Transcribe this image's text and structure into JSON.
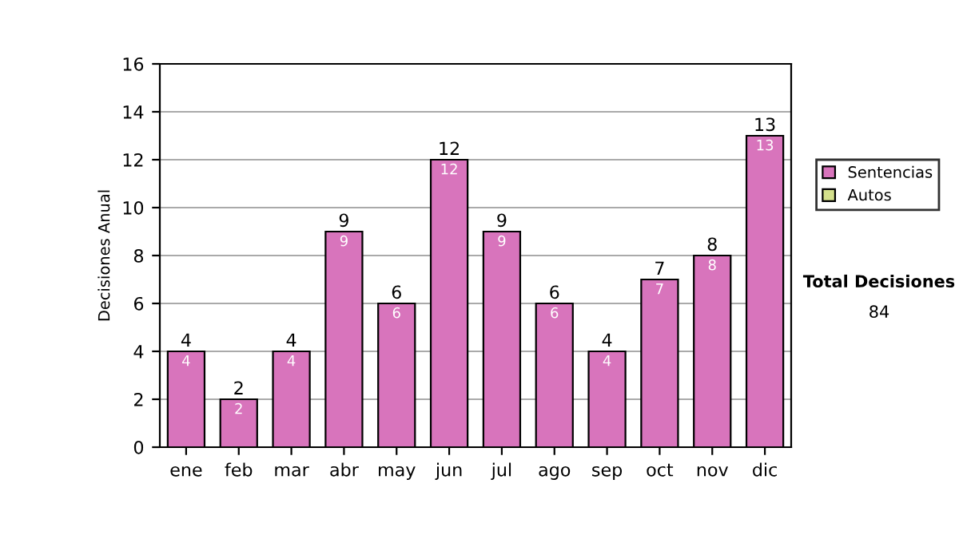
{
  "chart_data": {
    "type": "bar",
    "stacked": true,
    "categories": [
      "ene",
      "feb",
      "mar",
      "abr",
      "may",
      "jun",
      "jul",
      "ago",
      "sep",
      "oct",
      "nov",
      "dic"
    ],
    "series": [
      {
        "name": "Sentencias",
        "color": "#d874bc",
        "values": [
          4,
          2,
          4,
          9,
          6,
          12,
          9,
          6,
          4,
          7,
          8,
          13
        ]
      },
      {
        "name": "Autos",
        "color": "#d4e08c",
        "values": [
          null,
          null,
          null,
          null,
          null,
          null,
          null,
          null,
          null,
          null,
          null,
          null
        ]
      }
    ],
    "data_labels": true,
    "totals": [
      "4",
      "2",
      "4",
      "9",
      "6",
      "12",
      "9",
      "6",
      "4",
      "7",
      "8",
      "13"
    ],
    "ylabel": "Decisiones Anual",
    "ylim": [
      0,
      16
    ],
    "yticks": [
      0,
      2,
      4,
      6,
      8,
      10,
      12,
      14,
      16
    ],
    "grid": "y",
    "legend": "right",
    "annotations": [
      "Total Decisiones",
      "84"
    ]
  }
}
